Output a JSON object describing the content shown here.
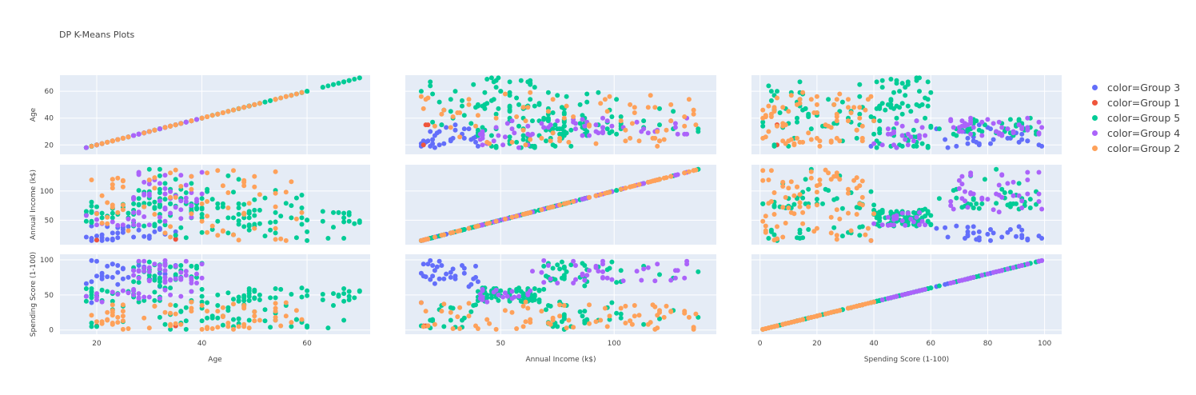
{
  "chart_data": {
    "type": "scatter",
    "title": "DP K-Means Plots",
    "dimensions": [
      "Age",
      "Annual Income (k$)",
      "Spending Score (1-100)"
    ],
    "axes": {
      "Age": {
        "range": [
          13,
          72
        ],
        "ticks": [
          20,
          40,
          60
        ]
      },
      "Annual Income (k$)": {
        "range": [
          8,
          145
        ],
        "ticks": [
          50,
          100
        ]
      },
      "Spending Score (1-100)": {
        "range": [
          -6,
          108
        ],
        "ticks": [
          0,
          50,
          100
        ]
      }
    },
    "axes_x_spending": {
      "range": [
        -3,
        106
      ],
      "ticks": [
        0,
        20,
        40,
        60,
        80,
        100
      ]
    },
    "series": [
      {
        "name": "color=Group 3",
        "color": "#636efa",
        "points": [
          [
            19,
            15,
            39
          ],
          [
            21,
            15,
            81
          ],
          [
            20,
            16,
            77
          ],
          [
            23,
            16,
            94
          ],
          [
            22,
            17,
            76
          ],
          [
            23,
            18,
            94
          ],
          [
            30,
            19,
            72
          ],
          [
            21,
            20,
            77
          ],
          [
            24,
            20,
            92
          ],
          [
            30,
            23,
            73
          ],
          [
            35,
            24,
            92
          ],
          [
            21,
            25,
            73
          ],
          [
            23,
            28,
            75
          ],
          [
            24,
            28,
            82
          ],
          [
            25,
            29,
            87
          ],
          [
            31,
            30,
            73
          ],
          [
            28,
            33,
            92
          ],
          [
            32,
            34,
            81
          ],
          [
            25,
            38,
            73
          ],
          [
            26,
            39,
            75
          ],
          [
            22,
            39,
            91
          ],
          [
            19,
            19,
            99
          ],
          [
            24,
            37,
            65
          ],
          [
            18,
            21,
            66
          ],
          [
            20,
            23,
            98
          ],
          [
            33,
            26,
            80
          ],
          [
            35,
            30,
            77
          ],
          [
            27,
            21,
            85
          ],
          [
            29,
            22,
            90
          ],
          [
            19,
            40,
            69
          ],
          [
            32,
            36,
            62
          ],
          [
            25,
            34,
            88
          ]
        ]
      },
      {
        "name": "color=Group 1",
        "color": "#ef553b",
        "points": [
          [
            20,
            16,
            6
          ],
          [
            35,
            17,
            6
          ],
          [
            35,
            18,
            6
          ]
        ]
      },
      {
        "name": "color=Group 5",
        "color": "#00cc96",
        "points": [
          [
            60,
            15,
            6
          ],
          [
            64,
            19,
            3
          ],
          [
            67,
            19,
            14
          ],
          [
            58,
            20,
            15
          ],
          [
            37,
            20,
            13
          ],
          [
            52,
            23,
            29
          ],
          [
            35,
            24,
            35
          ],
          [
            46,
            25,
            5
          ],
          [
            54,
            28,
            14
          ],
          [
            45,
            28,
            32
          ],
          [
            40,
            29,
            31
          ],
          [
            60,
            30,
            4
          ],
          [
            53,
            33,
            4
          ],
          [
            49,
            33,
            14
          ],
          [
            42,
            34,
            17
          ],
          [
            36,
            37,
            26
          ],
          [
            65,
            38,
            35
          ],
          [
            48,
            39,
            36
          ],
          [
            49,
            40,
            42
          ],
          [
            50,
            40,
            55
          ],
          [
            27,
            40,
            47
          ],
          [
            29,
            40,
            42
          ],
          [
            31,
            40,
            42
          ],
          [
            49,
            42,
            52
          ],
          [
            33,
            42,
            60
          ],
          [
            31,
            43,
            54
          ],
          [
            59,
            43,
            60
          ],
          [
            50,
            43,
            45
          ],
          [
            47,
            43,
            41
          ],
          [
            51,
            44,
            50
          ],
          [
            69,
            44,
            46
          ],
          [
            27,
            46,
            51
          ],
          [
            53,
            46,
            46
          ],
          [
            70,
            46,
            56
          ],
          [
            19,
            46,
            55
          ],
          [
            67,
            47,
            52
          ],
          [
            54,
            47,
            59
          ],
          [
            63,
            48,
            51
          ],
          [
            18,
            48,
            59
          ],
          [
            43,
            48,
            50
          ],
          [
            68,
            48,
            48
          ],
          [
            19,
            48,
            59
          ],
          [
            32,
            48,
            47
          ],
          [
            70,
            49,
            55
          ],
          [
            47,
            49,
            42
          ],
          [
            60,
            50,
            49
          ],
          [
            60,
            50,
            56
          ],
          [
            59,
            54,
            47
          ],
          [
            26,
            54,
            54
          ],
          [
            45,
            54,
            53
          ],
          [
            40,
            54,
            48
          ],
          [
            23,
            54,
            52
          ],
          [
            49,
            54,
            42
          ],
          [
            57,
            54,
            51
          ],
          [
            38,
            54,
            55
          ],
          [
            67,
            54,
            41
          ],
          [
            46,
            54,
            44
          ],
          [
            21,
            54,
            57
          ],
          [
            48,
            54,
            46
          ],
          [
            55,
            57,
            58
          ],
          [
            22,
            57,
            55
          ],
          [
            34,
            58,
            60
          ],
          [
            50,
            58,
            46
          ],
          [
            68,
            59,
            55
          ],
          [
            18,
            59,
            41
          ],
          [
            48,
            60,
            49
          ],
          [
            40,
            60,
            40
          ],
          [
            32,
            60,
            42
          ],
          [
            24,
            60,
            52
          ],
          [
            47,
            60,
            47
          ],
          [
            27,
            60,
            50
          ],
          [
            48,
            61,
            42
          ],
          [
            20,
            61,
            49
          ],
          [
            23,
            62,
            41
          ],
          [
            49,
            62,
            48
          ],
          [
            67,
            62,
            59
          ],
          [
            26,
            62,
            55
          ],
          [
            49,
            62,
            56
          ],
          [
            21,
            62,
            42
          ],
          [
            66,
            63,
            50
          ],
          [
            54,
            63,
            46
          ],
          [
            68,
            63,
            43
          ],
          [
            66,
            63,
            48
          ],
          [
            65,
            63,
            52
          ],
          [
            19,
            63,
            54
          ],
          [
            38,
            64,
            42
          ],
          [
            19,
            64,
            46
          ],
          [
            18,
            65,
            48
          ],
          [
            19,
            65,
            50
          ],
          [
            63,
            65,
            43
          ],
          [
            49,
            65,
            59
          ],
          [
            51,
            67,
            43
          ],
          [
            50,
            67,
            57
          ],
          [
            27,
            67,
            56
          ],
          [
            38,
            67,
            40
          ],
          [
            40,
            69,
            58
          ],
          [
            39,
            69,
            91
          ],
          [
            23,
            70,
            29
          ],
          [
            31,
            70,
            77
          ],
          [
            43,
            71,
            35
          ],
          [
            40,
            71,
            95
          ],
          [
            59,
            71,
            11
          ],
          [
            38,
            71,
            75
          ],
          [
            47,
            71,
            9
          ],
          [
            39,
            71,
            75
          ],
          [
            25,
            72,
            34
          ],
          [
            31,
            72,
            71
          ],
          [
            20,
            73,
            5
          ],
          [
            29,
            73,
            88
          ],
          [
            44,
            73,
            7
          ],
          [
            32,
            73,
            73
          ],
          [
            19,
            74,
            10
          ],
          [
            35,
            74,
            72
          ],
          [
            57,
            75,
            5
          ],
          [
            32,
            75,
            93
          ],
          [
            28,
            76,
            40
          ],
          [
            32,
            76,
            87
          ],
          [
            25,
            77,
            12
          ],
          [
            28,
            77,
            97
          ],
          [
            48,
            77,
            36
          ],
          [
            32,
            77,
            74
          ],
          [
            34,
            78,
            22
          ],
          [
            34,
            78,
            90
          ],
          [
            43,
            78,
            17
          ],
          [
            39,
            78,
            88
          ],
          [
            44,
            78,
            20
          ],
          [
            38,
            78,
            76
          ],
          [
            47,
            78,
            16
          ],
          [
            27,
            78,
            89
          ],
          [
            37,
            78,
            1
          ],
          [
            30,
            78,
            78
          ],
          [
            34,
            78,
            1
          ],
          [
            30,
            78,
            73
          ],
          [
            56,
            79,
            35
          ],
          [
            29,
            79,
            83
          ],
          [
            19,
            81,
            5
          ],
          [
            31,
            81,
            93
          ],
          [
            50,
            85,
            26
          ],
          [
            36,
            85,
            75
          ],
          [
            42,
            86,
            20
          ],
          [
            33,
            86,
            95
          ],
          [
            36,
            87,
            27
          ],
          [
            32,
            87,
            63
          ],
          [
            40,
            87,
            13
          ],
          [
            28,
            87,
            75
          ],
          [
            36,
            87,
            10
          ],
          [
            36,
            87,
            92
          ],
          [
            52,
            88,
            13
          ],
          [
            30,
            88,
            86
          ],
          [
            58,
            88,
            15
          ],
          [
            27,
            88,
            69
          ],
          [
            59,
            93,
            14
          ],
          [
            35,
            93,
            90
          ],
          [
            37,
            97,
            32
          ],
          [
            32,
            97,
            86
          ],
          [
            46,
            98,
            15
          ],
          [
            29,
            98,
            88
          ],
          [
            41,
            99,
            39
          ],
          [
            30,
            99,
            97
          ],
          [
            54,
            101,
            24
          ],
          [
            28,
            101,
            68
          ],
          [
            41,
            103,
            17
          ],
          [
            36,
            103,
            85
          ],
          [
            34,
            103,
            23
          ],
          [
            32,
            103,
            69
          ],
          [
            33,
            113,
            8
          ],
          [
            38,
            113,
            91
          ],
          [
            47,
            120,
            16
          ],
          [
            35,
            120,
            79
          ],
          [
            45,
            126,
            28
          ],
          [
            32,
            126,
            74
          ],
          [
            32,
            137,
            18
          ],
          [
            30,
            137,
            83
          ]
        ]
      },
      {
        "name": "color=Group 4",
        "color": "#ab63fa",
        "points": []
      },
      {
        "name": "color=Group 2",
        "color": "#fea15a",
        "points": []
      }
    ]
  },
  "legend": {
    "items": [
      {
        "label": "color=Group 3",
        "color": "#636efa"
      },
      {
        "label": "color=Group 1",
        "color": "#ef553b"
      },
      {
        "label": "color=Group 5",
        "color": "#00cc96"
      },
      {
        "label": "color=Group 4",
        "color": "#ab63fa"
      },
      {
        "label": "color=Group 2",
        "color": "#fea15a"
      }
    ]
  },
  "colors": {
    "plot_bg": "#e5ecf6",
    "grid": "#ffffff",
    "text": "#444444"
  }
}
